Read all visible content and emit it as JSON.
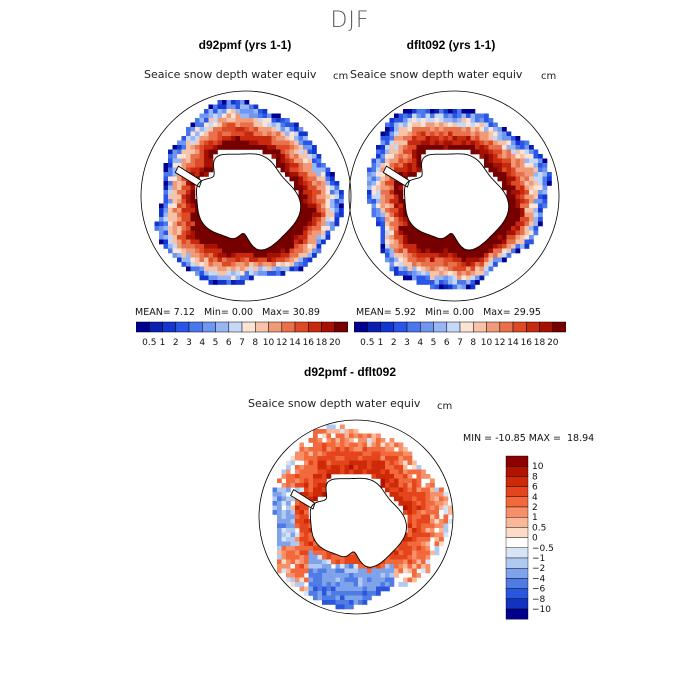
{
  "chart_data": [
    {
      "type": "heatmap",
      "projection": "south-polar-stereographic",
      "title": "d92pmf (yrs 1-1)",
      "variable": "Seaice snow depth water equiv",
      "units": "cm",
      "stats": {
        "mean_label": "MEAN=",
        "mean": "7.12",
        "min_label": "Min=",
        "min": "0.00",
        "max_label": "Max=",
        "max": "30.89"
      },
      "mean": 7.12,
      "min": 0.0,
      "max": 30.89,
      "colorbar": {
        "orientation": "horizontal",
        "levels": [
          "0.5",
          "1",
          "2",
          "3",
          "4",
          "5",
          "6",
          "7",
          "8",
          "10",
          "12",
          "14",
          "16",
          "18",
          "20"
        ],
        "colors": [
          "#000090",
          "#0a1fb0",
          "#1236d0",
          "#2b55e6",
          "#4a77ec",
          "#6f96f0",
          "#98b6f4",
          "#c6d8f8",
          "#fbe4d6",
          "#f6c2a8",
          "#f09a78",
          "#e8704d",
          "#dc4a26",
          "#c72a0e",
          "#a51204",
          "#760000"
        ]
      }
    },
    {
      "type": "heatmap",
      "projection": "south-polar-stereographic",
      "title": "dflt092 (yrs 1-1)",
      "variable": "Seaice snow depth water equiv",
      "units": "cm",
      "stats": {
        "mean_label": "MEAN=",
        "mean": "5.92",
        "min_label": "Min=",
        "min": "0.00",
        "max_label": "Max=",
        "max": "29.95"
      },
      "mean": 5.92,
      "min": 0.0,
      "max": 29.95,
      "colorbar": {
        "orientation": "horizontal",
        "levels": [
          "0.5",
          "1",
          "2",
          "3",
          "4",
          "5",
          "6",
          "7",
          "8",
          "10",
          "12",
          "14",
          "16",
          "18",
          "20"
        ],
        "colors": [
          "#000090",
          "#0a1fb0",
          "#1236d0",
          "#2b55e6",
          "#4a77ec",
          "#6f96f0",
          "#98b6f4",
          "#c6d8f8",
          "#fbe4d6",
          "#f6c2a8",
          "#f09a78",
          "#e8704d",
          "#dc4a26",
          "#c72a0e",
          "#a51204",
          "#760000"
        ]
      }
    },
    {
      "type": "heatmap",
      "projection": "south-polar-stereographic",
      "title": "d92pmf - dflt092",
      "variable": "Seaice snow depth water equiv",
      "units": "cm",
      "stats": {
        "min_label": "MIN =",
        "min": "-10.85",
        "max_label": "MAX =",
        "max": "18.94"
      },
      "min": -10.85,
      "max": 18.94,
      "colorbar": {
        "orientation": "vertical",
        "levels": [
          "10",
          "8",
          "6",
          "4",
          "2",
          "1",
          "0.5",
          "0",
          "−0.5",
          "−1",
          "−2",
          "−4",
          "−6",
          "−8",
          "−10"
        ],
        "colors": [
          "#8b0000",
          "#b01400",
          "#cf2a08",
          "#e5451c",
          "#f2693d",
          "#f79068",
          "#fab898",
          "#fcdcc8",
          "#ffffff",
          "#d6e4f6",
          "#b0c9f0",
          "#7fa3ea",
          "#4f7be4",
          "#2a56de",
          "#1232c2",
          "#00008c"
        ]
      }
    }
  ],
  "season": "DJF"
}
